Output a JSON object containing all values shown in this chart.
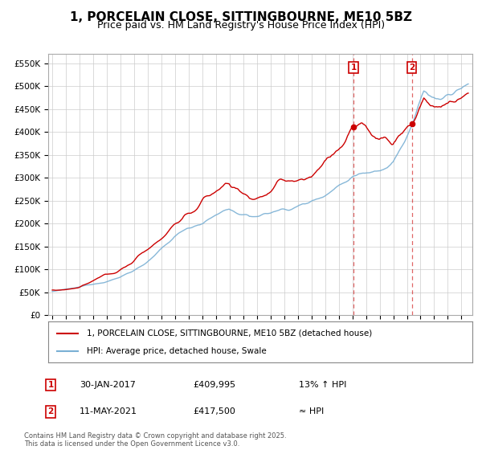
{
  "title": "1, PORCELAIN CLOSE, SITTINGBOURNE, ME10 5BZ",
  "subtitle": "Price paid vs. HM Land Registry's House Price Index (HPI)",
  "ylim": [
    0,
    570000
  ],
  "yticks": [
    0,
    50000,
    100000,
    150000,
    200000,
    250000,
    300000,
    350000,
    400000,
    450000,
    500000,
    550000
  ],
  "x_start_year": 1995,
  "x_end_year": 2025,
  "marker1_year": 2017.08,
  "marker2_year": 2021.37,
  "marker1_price": 409995,
  "marker2_price": 417500,
  "marker1_date": "30-JAN-2017",
  "marker2_date": "11-MAY-2021",
  "marker1_hpi_text": "13% ↑ HPI",
  "marker2_hpi_text": "≈ HPI",
  "line1_color": "#cc0000",
  "line2_color": "#7ab0d4",
  "line1_label": "1, PORCELAIN CLOSE, SITTINGBOURNE, ME10 5BZ (detached house)",
  "line2_label": "HPI: Average price, detached house, Swale",
  "footer": "Contains HM Land Registry data © Crown copyright and database right 2025.\nThis data is licensed under the Open Government Licence v3.0.",
  "background_color": "#ffffff",
  "plot_bg_color": "#ffffff",
  "grid_color": "#cccccc",
  "title_fontsize": 11,
  "subtitle_fontsize": 9
}
